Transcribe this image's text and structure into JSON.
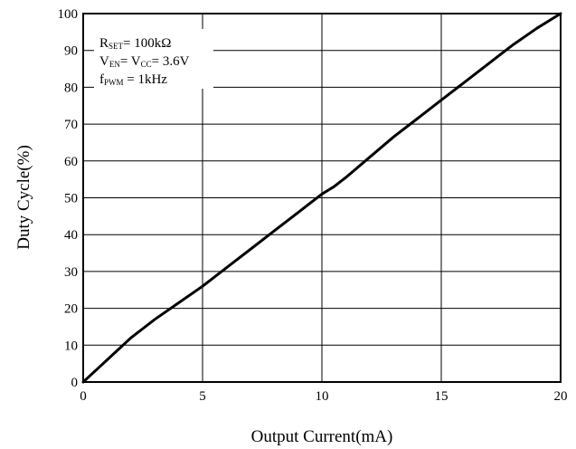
{
  "chart_data": {
    "type": "line",
    "title": "",
    "xlabel": "Output Current(mA)",
    "ylabel": "Duty Cycle(%)",
    "xlim": [
      0,
      20
    ],
    "ylim": [
      0,
      100
    ],
    "x_ticks": [
      0,
      5,
      10,
      15,
      20
    ],
    "y_ticks": [
      0,
      10,
      20,
      30,
      40,
      50,
      60,
      70,
      80,
      90,
      100
    ],
    "x_tick_labels": [
      "0",
      "5",
      "10",
      "15",
      "20"
    ],
    "y_tick_labels": [
      "0",
      "10",
      "20",
      "30",
      "40",
      "50",
      "60",
      "70",
      "80",
      "90",
      "100"
    ],
    "grid": true,
    "annotations": {
      "rset": {
        "base": "R",
        "sub": "SET",
        "rest": "= 100kΩ"
      },
      "ven": {
        "base1": "V",
        "sub1": "EN",
        "mid": "= V",
        "sub2": "CC",
        "rest": "= 3.6V"
      },
      "fpwm": {
        "base": "f",
        "sub": "PWM",
        "rest": " = 1kHz"
      }
    },
    "series": [
      {
        "color": "#000000",
        "x": [
          0,
          0.5,
          1,
          1.5,
          2,
          2.5,
          3,
          4,
          5,
          6,
          7,
          8,
          9,
          9.5,
          10,
          10.5,
          11,
          12,
          13,
          14,
          15,
          16,
          17,
          18,
          19,
          20
        ],
        "y": [
          0,
          3,
          6,
          9,
          12,
          14.5,
          17,
          21.5,
          26,
          31,
          36,
          41,
          46,
          48.5,
          51,
          53,
          55.5,
          61,
          66.5,
          71.5,
          76.5,
          81.5,
          86.5,
          91.5,
          96,
          100
        ]
      }
    ]
  }
}
